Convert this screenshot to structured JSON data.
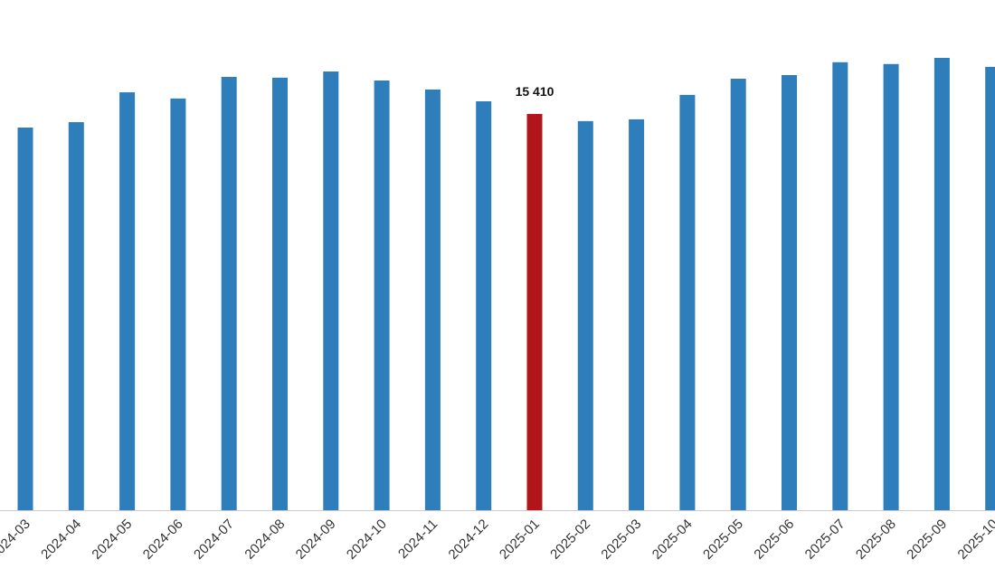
{
  "chart_data": {
    "type": "bar",
    "categories": [
      "2024-03",
      "2024-04",
      "2024-05",
      "2024-06",
      "2024-07",
      "2024-08",
      "2024-09",
      "2024-10",
      "2024-11",
      "2024-12",
      "2025-01",
      "2025-02",
      "2025-03",
      "2025-04",
      "2025-05",
      "2025-06",
      "2025-07",
      "2025-08",
      "2025-09",
      "2025-10"
    ],
    "values": [
      14880,
      15090,
      16250,
      16010,
      16850,
      16820,
      17060,
      16710,
      16360,
      15900,
      15410,
      15130,
      15200,
      16150,
      16780,
      16920,
      17420,
      17350,
      17590,
      17240
    ],
    "value_labels": [
      null,
      null,
      null,
      null,
      null,
      null,
      null,
      null,
      null,
      null,
      "15 410",
      null,
      null,
      null,
      null,
      null,
      null,
      null,
      null,
      null
    ],
    "colors": [
      "#2f7ebc",
      "#2f7ebc",
      "#2f7ebc",
      "#2f7ebc",
      "#2f7ebc",
      "#2f7ebc",
      "#2f7ebc",
      "#2f7ebc",
      "#2f7ebc",
      "#2f7ebc",
      "#b0151c",
      "#2f7ebc",
      "#2f7ebc",
      "#2f7ebc",
      "#2f7ebc",
      "#2f7ebc",
      "#2f7ebc",
      "#2f7ebc",
      "#2f7ebc",
      "#2f7ebc"
    ],
    "ylim": [
      0,
      19840
    ]
  }
}
